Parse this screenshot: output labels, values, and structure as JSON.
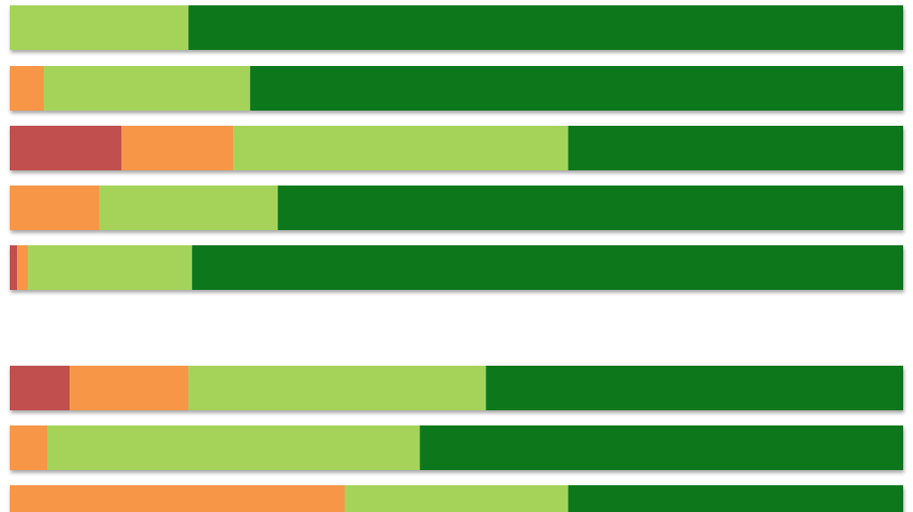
{
  "chart_data": {
    "type": "bar",
    "orientation": "horizontal",
    "stacked": true,
    "normalized": true,
    "title": "",
    "xlabel": "",
    "ylabel": "",
    "xlim": [
      0,
      100
    ],
    "grid": false,
    "legend": "none",
    "groups": [
      {
        "rows": [
          0,
          1,
          2,
          3,
          4
        ]
      },
      {
        "rows": [
          5,
          6,
          7
        ]
      }
    ],
    "series": [
      {
        "key": "s1",
        "color": "#c0504d",
        "values": [
          0.0,
          0.0,
          12.5,
          0.0,
          0.8,
          6.7,
          0.0,
          0.0
        ]
      },
      {
        "key": "s2",
        "color": "#f79646",
        "values": [
          0.0,
          3.8,
          12.5,
          10.0,
          1.2,
          13.3,
          4.2,
          37.5
        ]
      },
      {
        "key": "s3",
        "color": "#a5d35a",
        "values": [
          20.0,
          23.1,
          37.5,
          20.0,
          18.4,
          33.3,
          41.7,
          25.0
        ]
      },
      {
        "key": "s4",
        "color": "#11771b",
        "values": [
          80.0,
          73.1,
          37.5,
          70.0,
          79.6,
          46.7,
          54.1,
          37.5
        ]
      }
    ]
  }
}
